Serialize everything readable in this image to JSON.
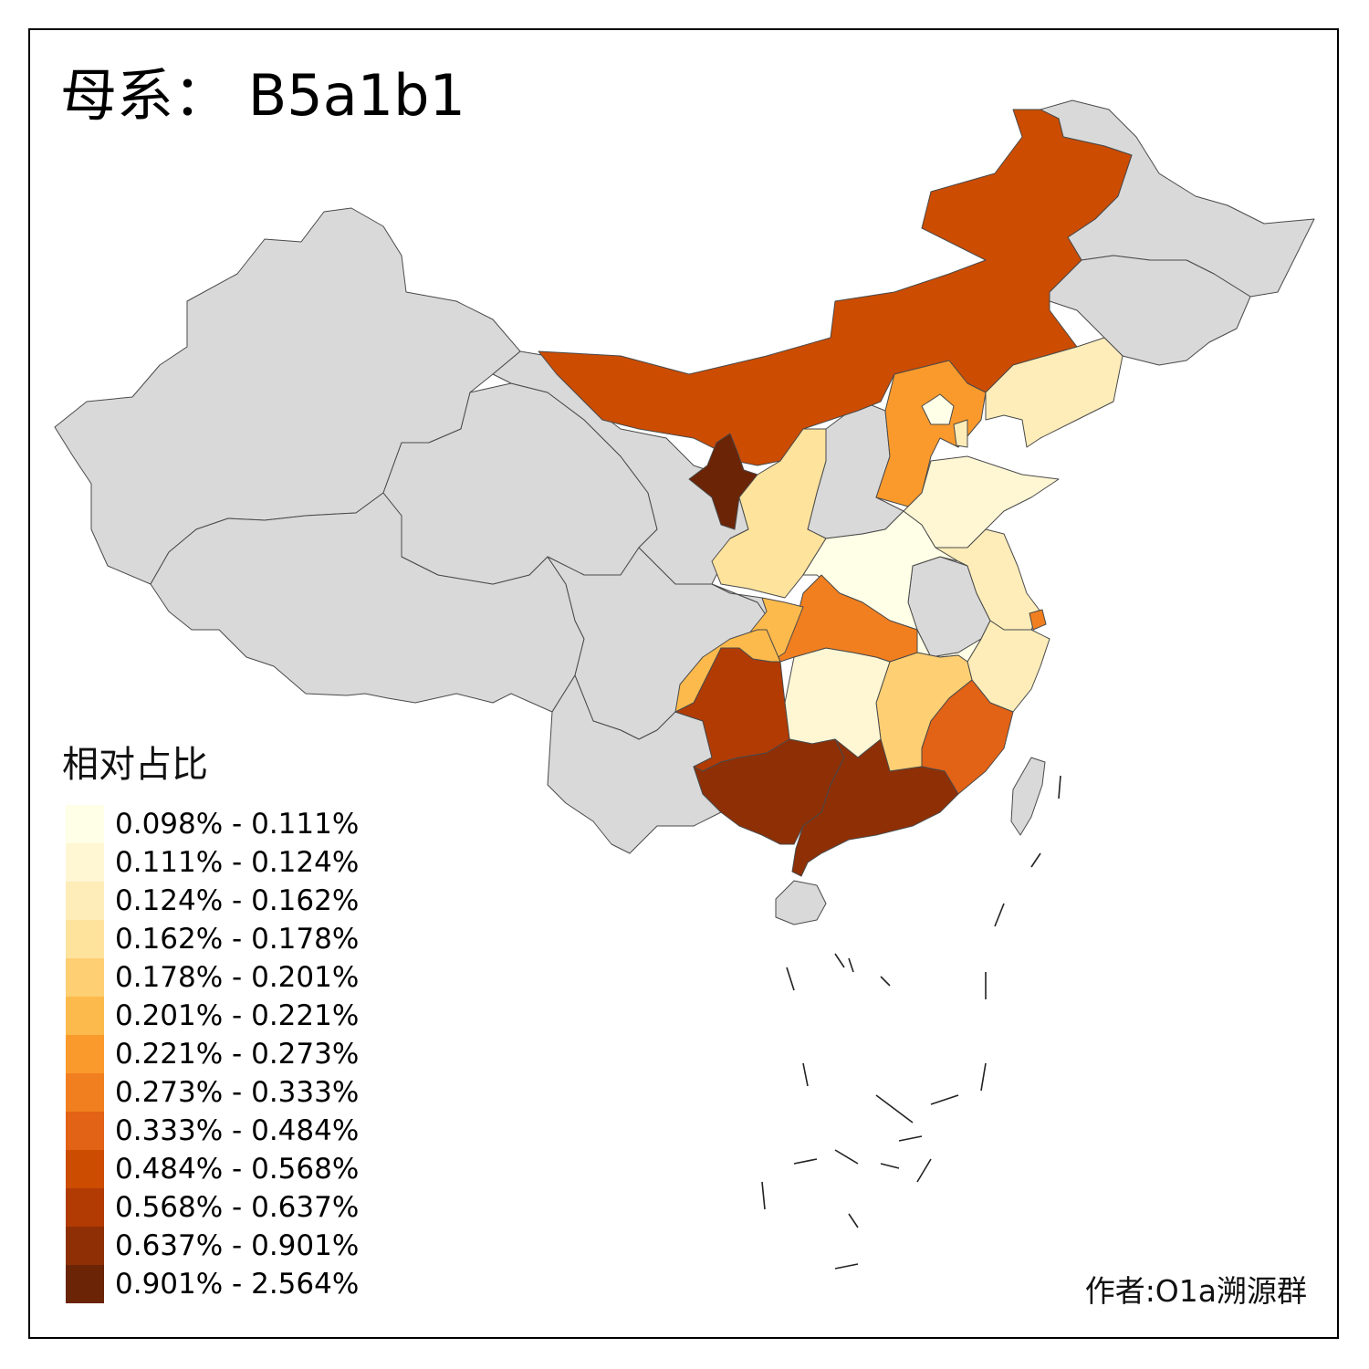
{
  "title": "母系： B5a1b1",
  "legend": {
    "title": "相对占比",
    "items": [
      {
        "label": "0.098% - 0.111%",
        "color": "#FFFEE6"
      },
      {
        "label": "0.111% - 0.124%",
        "color": "#FFF6D4"
      },
      {
        "label": "0.124% - 0.162%",
        "color": "#FEEDB9"
      },
      {
        "label": "0.162% - 0.178%",
        "color": "#FEE39D"
      },
      {
        "label": "0.178% - 0.201%",
        "color": "#FECF73"
      },
      {
        "label": "0.201% - 0.221%",
        "color": "#FDBA4C"
      },
      {
        "label": "0.221% - 0.273%",
        "color": "#FB9A2C"
      },
      {
        "label": "0.273% - 0.333%",
        "color": "#F17F1F"
      },
      {
        "label": "0.333% - 0.484%",
        "color": "#E26216"
      },
      {
        "label": "0.484% - 0.568%",
        "color": "#CC4C02"
      },
      {
        "label": "0.568% - 0.637%",
        "color": "#B23B04"
      },
      {
        "label": "0.637% - 0.901%",
        "color": "#8F2F05"
      },
      {
        "label": "0.901% - 2.564%",
        "color": "#6B2406"
      }
    ]
  },
  "no_data_color": "#D9D9D9",
  "credit": "作者:O1a溯源群"
}
